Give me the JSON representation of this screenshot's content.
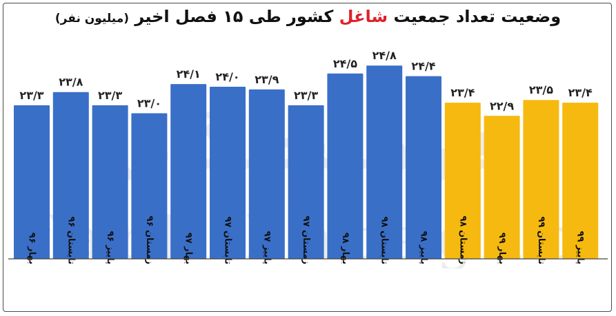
{
  "title": {
    "before": "وضعیت تعداد جمعیت",
    "highlight": "شاغل",
    "after": "کشور طی ۱۵ فصل اخیر",
    "unit": "(میلیون نفر)"
  },
  "watermark": {
    "text": "farhikhtegan",
    "logo_text": "فرهیختگان"
  },
  "colors": {
    "blue": "#3a6fc8",
    "yellow": "#f6b90f",
    "highlight": "#e0202b",
    "axis": "#444444"
  },
  "chart_data": {
    "type": "bar",
    "title": "وضعیت تعداد جمعیت شاغل کشور طی ۱۵ فصل اخیر (میلیون نفر)",
    "categories": [
      "بهار ۹۶",
      "تابستان ۹۶",
      "پاییز ۹۶",
      "زمستان ۹۶",
      "بهار ۹۷",
      "تابستان ۹۷",
      "پاییز ۹۷",
      "زمستان ۹۷",
      "بهار ۹۸",
      "تابستان ۹۸",
      "پاییز ۹۸",
      "زمستان ۹۸",
      "بهار ۹۹",
      "تابستان ۹۹",
      "پاییز ۹۹"
    ],
    "values": [
      23.3,
      23.8,
      23.3,
      23.0,
      24.1,
      24.0,
      23.9,
      23.3,
      24.5,
      24.8,
      24.4,
      23.4,
      22.9,
      23.5,
      23.4
    ],
    "value_labels": [
      "۲۳/۳",
      "۲۳/۸",
      "۲۳/۳",
      "۲۳/۰",
      "۲۴/۱",
      "۲۴/۰",
      "۲۳/۹",
      "۲۳/۳",
      "۲۴/۵",
      "۲۴/۸",
      "۲۴/۴",
      "۲۳/۴",
      "۲۲/۹",
      "۲۳/۵",
      "۲۳/۴"
    ],
    "bar_colors": [
      "blue",
      "blue",
      "blue",
      "blue",
      "blue",
      "blue",
      "blue",
      "blue",
      "blue",
      "blue",
      "blue",
      "yellow",
      "yellow",
      "yellow",
      "yellow"
    ],
    "xlabel": "",
    "ylabel": "",
    "ylim": [
      17.5,
      25.3
    ],
    "grid": false,
    "legend": "none"
  }
}
